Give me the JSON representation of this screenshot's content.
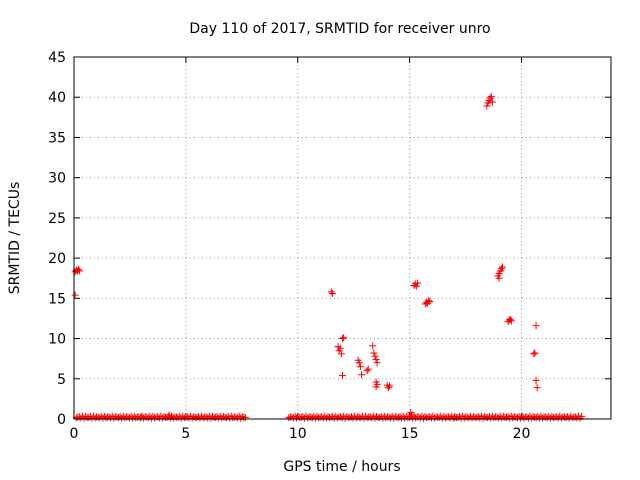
{
  "chart_data": {
    "type": "scatter",
    "title": "Day 110 of 2017, SRMTID for receiver unro",
    "xlabel": "GPS time / hours",
    "ylabel": "SRMTID / TECUs",
    "xlim": [
      0,
      24
    ],
    "ylim": [
      0,
      45
    ],
    "xticks": [
      0,
      5,
      10,
      15,
      20
    ],
    "yticks": [
      0,
      5,
      10,
      15,
      20,
      25,
      30,
      35,
      40,
      45
    ],
    "grid": true,
    "marker": "+",
    "series": [
      {
        "color": "#ff0000",
        "points": [
          [
            0.05,
            18.3
          ],
          [
            0.1,
            18.5
          ],
          [
            0.15,
            18.4
          ],
          [
            0.2,
            18.6
          ],
          [
            0.25,
            18.4
          ],
          [
            0.05,
            15.4
          ],
          [
            11.5,
            15.8
          ],
          [
            11.55,
            15.6
          ],
          [
            11.8,
            9.0
          ],
          [
            11.85,
            8.5
          ],
          [
            11.9,
            8.8
          ],
          [
            11.95,
            8.1
          ],
          [
            12.0,
            10.0
          ],
          [
            12.05,
            10.1
          ],
          [
            12.0,
            5.4
          ],
          [
            12.7,
            7.3
          ],
          [
            12.75,
            7.0
          ],
          [
            12.8,
            6.5
          ],
          [
            12.85,
            5.5
          ],
          [
            13.1,
            6.0
          ],
          [
            13.15,
            6.2
          ],
          [
            13.35,
            9.1
          ],
          [
            13.4,
            8.2
          ],
          [
            13.45,
            7.8
          ],
          [
            13.5,
            7.4
          ],
          [
            13.55,
            7.0
          ],
          [
            13.5,
            4.6
          ],
          [
            13.55,
            4.3
          ],
          [
            13.5,
            4.0
          ],
          [
            14.0,
            4.2
          ],
          [
            14.05,
            3.9
          ],
          [
            14.1,
            4.1
          ],
          [
            15.2,
            16.6
          ],
          [
            15.25,
            16.8
          ],
          [
            15.3,
            16.5
          ],
          [
            15.35,
            16.9
          ],
          [
            15.7,
            14.3
          ],
          [
            15.75,
            14.5
          ],
          [
            15.8,
            14.4
          ],
          [
            15.85,
            14.7
          ],
          [
            15.9,
            14.6
          ],
          [
            18.45,
            38.9
          ],
          [
            18.5,
            39.3
          ],
          [
            18.55,
            39.6
          ],
          [
            18.6,
            39.9
          ],
          [
            18.65,
            40.1
          ],
          [
            18.7,
            39.4
          ],
          [
            18.95,
            17.8
          ],
          [
            19.0,
            18.1
          ],
          [
            19.05,
            18.4
          ],
          [
            19.1,
            18.7
          ],
          [
            19.15,
            18.9
          ],
          [
            19.0,
            17.5
          ],
          [
            19.4,
            12.1
          ],
          [
            19.45,
            12.3
          ],
          [
            19.5,
            12.4
          ],
          [
            19.55,
            12.2
          ],
          [
            20.55,
            8.1
          ],
          [
            20.6,
            8.2
          ],
          [
            20.65,
            11.6
          ],
          [
            20.65,
            4.8
          ],
          [
            20.7,
            3.9
          ],
          [
            4.25,
            0.5
          ],
          [
            4.35,
            0.3
          ],
          [
            15.05,
            0.8
          ],
          [
            15.1,
            0.5
          ],
          [
            3.0,
            0.25
          ],
          [
            17.0,
            0.2
          ]
        ],
        "baseline_segments": [
          [
            0.1,
            7.7
          ],
          [
            9.6,
            22.7
          ]
        ],
        "baseline_value": 0.1
      }
    ]
  }
}
